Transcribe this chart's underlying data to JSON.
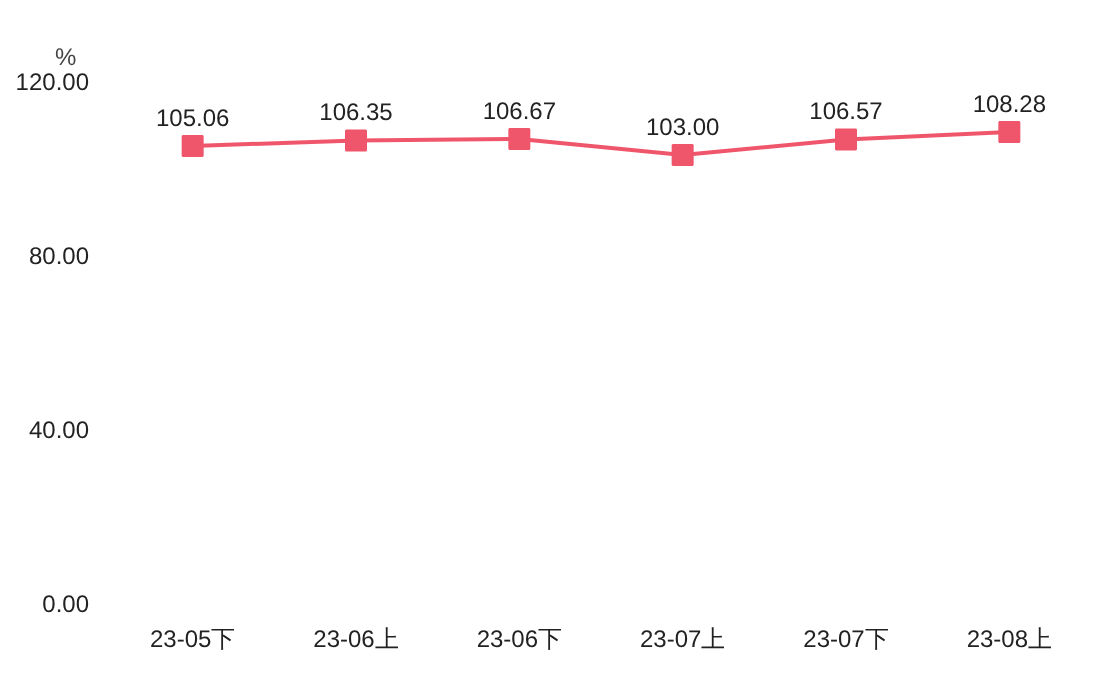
{
  "chart_data": {
    "type": "line",
    "ylabel": "%",
    "categories": [
      "23-05下",
      "23-06上",
      "23-06下",
      "23-07上",
      "23-07下",
      "23-08上"
    ],
    "series": [
      {
        "color": "#f0566b",
        "values": [
          105.06,
          106.35,
          106.67,
          103.0,
          106.57,
          108.28
        ]
      }
    ],
    "ylim": [
      0,
      120
    ],
    "yticks": [
      {
        "value": 0,
        "label": "0.00"
      },
      {
        "value": 40,
        "label": "40.00"
      },
      {
        "value": 80,
        "label": "80.00"
      },
      {
        "value": 120,
        "label": "120.00"
      }
    ],
    "value_labels": [
      "105.06",
      "106.35",
      "106.67",
      "103.00",
      "106.57",
      "108.28"
    ],
    "marker": "square",
    "line_style": "solid",
    "grid": false
  }
}
